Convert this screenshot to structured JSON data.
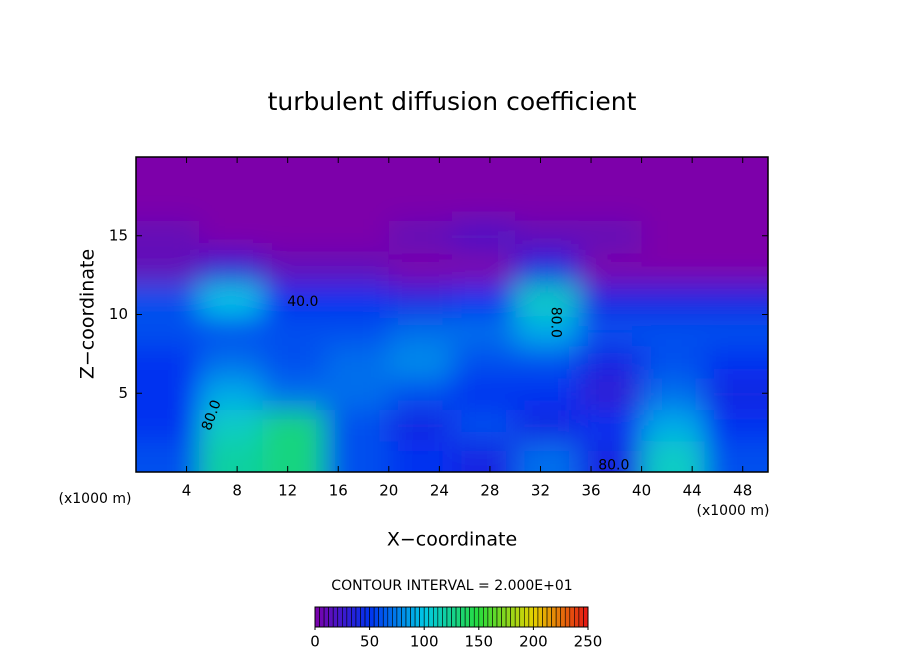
{
  "chart_data": {
    "type": "contour",
    "title": "turbulent diffusion coefficient",
    "x_label": "X−coordinate",
    "y_label": "Z−coordinate",
    "x_unit_label": "(x1000 m)",
    "y_unit_label": "(x1000 m)",
    "contour_interval_label": "CONTOUR INTERVAL = 2.000E+01",
    "xlim": [
      0,
      50
    ],
    "ylim": [
      0,
      20
    ],
    "xticks": [
      4,
      8,
      12,
      16,
      20,
      24,
      28,
      32,
      36,
      40,
      44,
      48
    ],
    "yticks": [
      5,
      10,
      15
    ],
    "x": [
      2.5,
      7.5,
      12.5,
      17.5,
      22.5,
      27.5,
      32.5,
      37.5,
      42.5,
      47.5
    ],
    "y": [
      1,
      3,
      5,
      7,
      9,
      11,
      13,
      15,
      17,
      19
    ],
    "z": [
      [
        60,
        120,
        130,
        60,
        50,
        40,
        70,
        40,
        110,
        60
      ],
      [
        50,
        110,
        130,
        60,
        40,
        60,
        40,
        50,
        90,
        50
      ],
      [
        50,
        90,
        70,
        70,
        60,
        50,
        50,
        30,
        70,
        40
      ],
      [
        50,
        70,
        60,
        70,
        80,
        60,
        60,
        40,
        60,
        50
      ],
      [
        60,
        60,
        60,
        60,
        70,
        70,
        90,
        60,
        60,
        60
      ],
      [
        60,
        100,
        50,
        50,
        40,
        50,
        110,
        40,
        40,
        40
      ],
      [
        10,
        30,
        10,
        10,
        0,
        0,
        40,
        0,
        0,
        0
      ],
      [
        10,
        0,
        0,
        0,
        10,
        20,
        10,
        10,
        0,
        0
      ],
      [
        0,
        0,
        0,
        0,
        0,
        0,
        0,
        0,
        0,
        0
      ],
      [
        0,
        0,
        0,
        0,
        0,
        0,
        0,
        0,
        0,
        0
      ]
    ],
    "contour_labels": [
      {
        "text": "40.0",
        "x": 13.2,
        "y": 10.8,
        "angle": 0
      },
      {
        "text": "80.0",
        "x": 33.2,
        "y": 9.5,
        "angle": 90
      },
      {
        "text": "80.0",
        "x": 6.0,
        "y": 3.6,
        "angle": -70
      },
      {
        "text": "80.0",
        "x": 37.8,
        "y": 0.4,
        "angle": 0
      }
    ],
    "clim": [
      0,
      250
    ],
    "colorbar_ticks": [
      0,
      50,
      100,
      150,
      200,
      250
    ]
  }
}
